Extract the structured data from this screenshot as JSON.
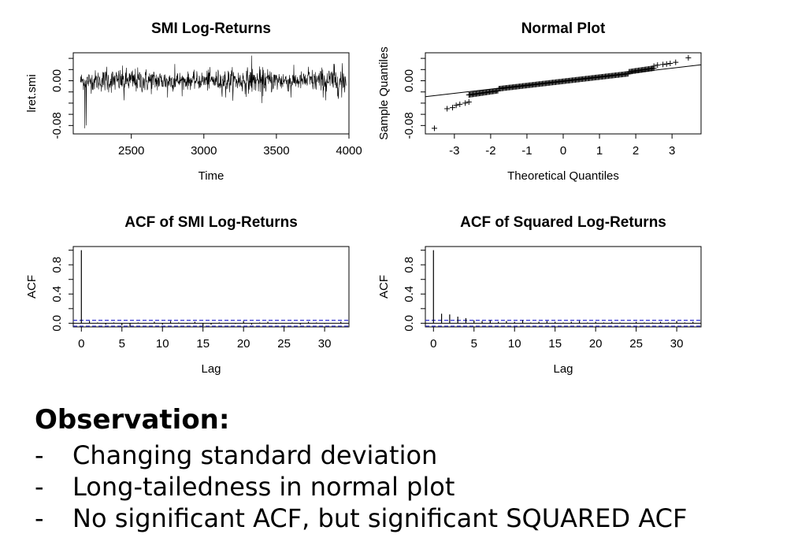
{
  "chart_data": [
    {
      "type": "line",
      "title": "SMI Log-Returns",
      "xlabel": "Time",
      "ylabel": "lret.smi",
      "xlim": [
        2100,
        4000
      ],
      "ylim": [
        -0.095,
        0.05
      ],
      "xticks": [
        2500,
        3000,
        3500,
        4000
      ],
      "yticks": [
        -0.08,
        0.0
      ],
      "x_start": 2150,
      "x_end": 3980,
      "spikes": [
        {
          "x": 2180,
          "y": -0.085
        },
        {
          "x": 2190,
          "y": -0.08
        },
        {
          "x": 2330,
          "y": 0.025
        },
        {
          "x": 2450,
          "y": -0.035
        },
        {
          "x": 2750,
          "y": -0.03
        },
        {
          "x": 2800,
          "y": 0.03
        },
        {
          "x": 3030,
          "y": 0.02
        },
        {
          "x": 3150,
          "y": -0.03
        },
        {
          "x": 3330,
          "y": 0.045
        },
        {
          "x": 3400,
          "y": -0.04
        },
        {
          "x": 3600,
          "y": -0.03
        },
        {
          "x": 3720,
          "y": 0.025
        },
        {
          "x": 3840,
          "y": -0.035
        },
        {
          "x": 3900,
          "y": 0.03
        },
        {
          "x": 3950,
          "y": -0.03
        }
      ]
    },
    {
      "type": "scatter",
      "title": "Normal Plot",
      "xlabel": "Theoretical Quantiles",
      "ylabel": "Sample Quantiles",
      "xlim": [
        -3.8,
        3.8
      ],
      "ylim": [
        -0.095,
        0.05
      ],
      "xticks": [
        -3,
        -2,
        -1,
        0,
        1,
        2,
        3
      ],
      "yticks": [
        -0.08,
        0.0
      ],
      "tail_points": [
        {
          "x": -3.55,
          "y": -0.085
        },
        {
          "x": -3.2,
          "y": -0.05
        },
        {
          "x": -3.05,
          "y": -0.048
        },
        {
          "x": -2.95,
          "y": -0.044
        },
        {
          "x": -2.85,
          "y": -0.042
        },
        {
          "x": -2.7,
          "y": -0.04
        },
        {
          "x": -2.6,
          "y": -0.038
        },
        {
          "x": 2.5,
          "y": 0.026
        },
        {
          "x": 2.6,
          "y": 0.028
        },
        {
          "x": 2.75,
          "y": 0.029
        },
        {
          "x": 2.85,
          "y": 0.03
        },
        {
          "x": 2.95,
          "y": 0.031
        },
        {
          "x": 3.1,
          "y": 0.033
        },
        {
          "x": 3.45,
          "y": 0.041
        }
      ],
      "reference_line": {
        "intercept": 0.0,
        "slope": 0.0075
      }
    },
    {
      "type": "bar",
      "title": "ACF of SMI Log-Returns",
      "xlabel": "Lag",
      "ylabel": "ACF",
      "xlim": [
        -1,
        33
      ],
      "ylim": [
        -0.05,
        1.05
      ],
      "xticks": [
        0,
        5,
        10,
        15,
        20,
        25,
        30
      ],
      "yticks": [
        0.0,
        0.4,
        0.8
      ],
      "lags": [
        0,
        1,
        2,
        3,
        4,
        5,
        6,
        7,
        8,
        9,
        10,
        11,
        12,
        13,
        14,
        15,
        16,
        17,
        18,
        19,
        20,
        21,
        22,
        23,
        24,
        25,
        26,
        27,
        28,
        29,
        30,
        31,
        32
      ],
      "values": [
        1.0,
        0.03,
        0.01,
        -0.02,
        0.01,
        -0.03,
        -0.04,
        0.01,
        0.0,
        0.02,
        -0.02,
        0.03,
        0.01,
        -0.01,
        0.02,
        -0.04,
        -0.02,
        0.01,
        0.0,
        -0.01,
        0.03,
        -0.02,
        0.01,
        0.02,
        -0.01,
        0.0,
        0.01,
        -0.02,
        0.02,
        0.01,
        -0.01,
        0.0,
        0.02
      ],
      "ci": 0.04
    },
    {
      "type": "bar",
      "title": "ACF of Squared Log-Returns",
      "xlabel": "Lag",
      "ylabel": "ACF",
      "xlim": [
        -1,
        33
      ],
      "ylim": [
        -0.05,
        1.05
      ],
      "xticks": [
        0,
        5,
        10,
        15,
        20,
        25,
        30
      ],
      "yticks": [
        0.0,
        0.4,
        0.8
      ],
      "lags": [
        0,
        1,
        2,
        3,
        4,
        5,
        6,
        7,
        8,
        9,
        10,
        11,
        12,
        13,
        14,
        15,
        16,
        17,
        18,
        19,
        20,
        21,
        22,
        23,
        24,
        25,
        26,
        27,
        28,
        29,
        30,
        31,
        32
      ],
      "values": [
        1.0,
        0.13,
        0.12,
        0.09,
        0.07,
        0.04,
        0.03,
        0.04,
        0.02,
        0.03,
        0.02,
        0.04,
        0.01,
        0.02,
        0.03,
        0.02,
        0.01,
        0.02,
        0.03,
        0.01,
        0.02,
        0.01,
        0.02,
        0.01,
        0.0,
        0.02,
        0.01,
        0.01,
        0.02,
        0.01,
        0.03,
        0.01,
        0.02
      ],
      "ci": 0.04
    }
  ],
  "observation": {
    "title": "Observation:",
    "dash": "-",
    "items": [
      "Changing standard deviation",
      "Long-tailedness in normal plot",
      "No significant ACF, but significant SQUARED ACF"
    ]
  }
}
